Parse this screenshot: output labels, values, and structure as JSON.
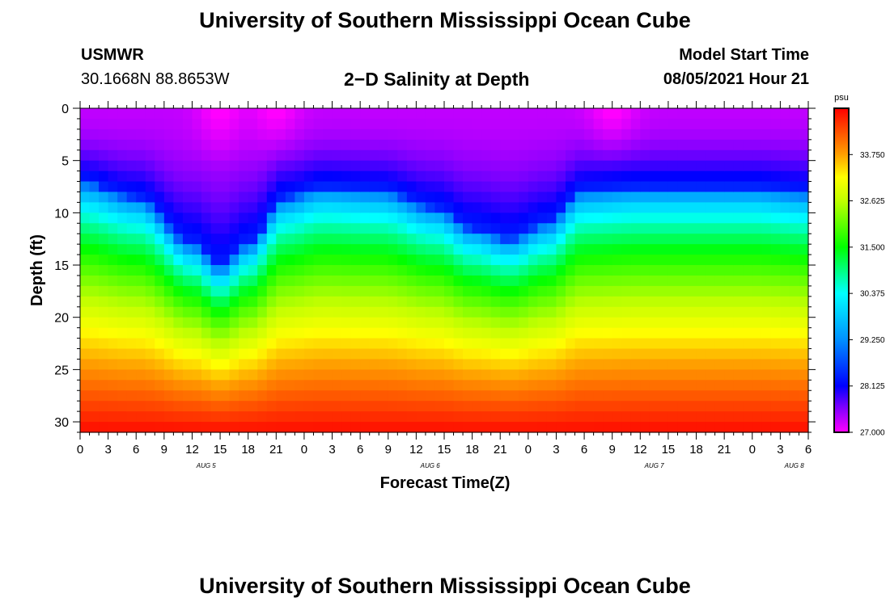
{
  "page": {
    "title_top": "University of Southern Mississippi Ocean Cube",
    "title_bottom": "University of Southern Mississippi Ocean Cube",
    "station_name": "USMWR",
    "station_coords": "30.1668N  88.8653W",
    "subtitle": "2−D Salinity at Depth",
    "model_start_label": "Model Start Time",
    "model_start_value": "08/05/2021 Hour 21"
  },
  "chart_data": {
    "type": "heatmap",
    "title": "2−D Salinity at Depth",
    "xlabel": "Forecast Time(Z)",
    "ylabel": "Depth (ft)",
    "x_tick_labels": [
      "0",
      "3",
      "6",
      "9",
      "12",
      "15",
      "18",
      "21",
      "0",
      "3",
      "6",
      "9",
      "12",
      "15",
      "18",
      "21",
      "0",
      "3",
      "6",
      "9",
      "12",
      "15",
      "18",
      "21",
      "0",
      "3",
      "6"
    ],
    "x_forecast_hours_range": [
      0,
      78
    ],
    "date_labels": [
      {
        "label": "AUG 5",
        "at_forecast_hour": 13.5
      },
      {
        "label": "AUG 6",
        "at_forecast_hour": 37.5
      },
      {
        "label": "AUG 7",
        "at_forecast_hour": 61.5
      },
      {
        "label": "AUG 8",
        "at_forecast_hour": 76.5
      }
    ],
    "y_ticks": [
      0,
      5,
      10,
      15,
      20,
      25,
      30
    ],
    "ylim": [
      0,
      31
    ],
    "y_inverted": true,
    "colorbar": {
      "unit": "psu",
      "range": [
        27.0,
        34.875
      ],
      "tick_labels": [
        "27.000",
        "28.125",
        "29.250",
        "30.375",
        "31.500",
        "32.625",
        "33.750"
      ],
      "stops": [
        {
          "value": 27.0,
          "color": "#ff00ff"
        },
        {
          "value": 27.6,
          "color": "#8000ff"
        },
        {
          "value": 28.125,
          "color": "#0000ff"
        },
        {
          "value": 29.25,
          "color": "#0090ff"
        },
        {
          "value": 30.375,
          "color": "#00ffff"
        },
        {
          "value": 31.5,
          "color": "#00ff00"
        },
        {
          "value": 32.625,
          "color": "#c0ff00"
        },
        {
          "value": 33.2,
          "color": "#ffff00"
        },
        {
          "value": 33.75,
          "color": "#ffa000"
        },
        {
          "value": 34.875,
          "color": "#ff0000"
        }
      ]
    },
    "halocline_depth_ft": [
      {
        "hour": 0,
        "depth": 7.0
      },
      {
        "hour": 6,
        "depth": 8.5
      },
      {
        "hour": 12,
        "depth": 13.0
      },
      {
        "hour": 15,
        "depth": 15.2
      },
      {
        "hour": 18,
        "depth": 13.0
      },
      {
        "hour": 22,
        "depth": 8.5
      },
      {
        "hour": 26,
        "depth": 7.5
      },
      {
        "hour": 32,
        "depth": 7.8
      },
      {
        "hour": 38,
        "depth": 9.5
      },
      {
        "hour": 42,
        "depth": 11.5
      },
      {
        "hour": 46,
        "depth": 12.5
      },
      {
        "hour": 50,
        "depth": 11.0
      },
      {
        "hour": 54,
        "depth": 7.8
      },
      {
        "hour": 60,
        "depth": 7.5
      },
      {
        "hour": 66,
        "depth": 7.5
      },
      {
        "hour": 72,
        "depth": 7.5
      },
      {
        "hour": 78,
        "depth": 8.0
      }
    ],
    "fresh_surface_hours": [
      15,
      21,
      57
    ],
    "salt_max_near_bottom": 34.8,
    "salt_min_near_surface": 27.3
  }
}
